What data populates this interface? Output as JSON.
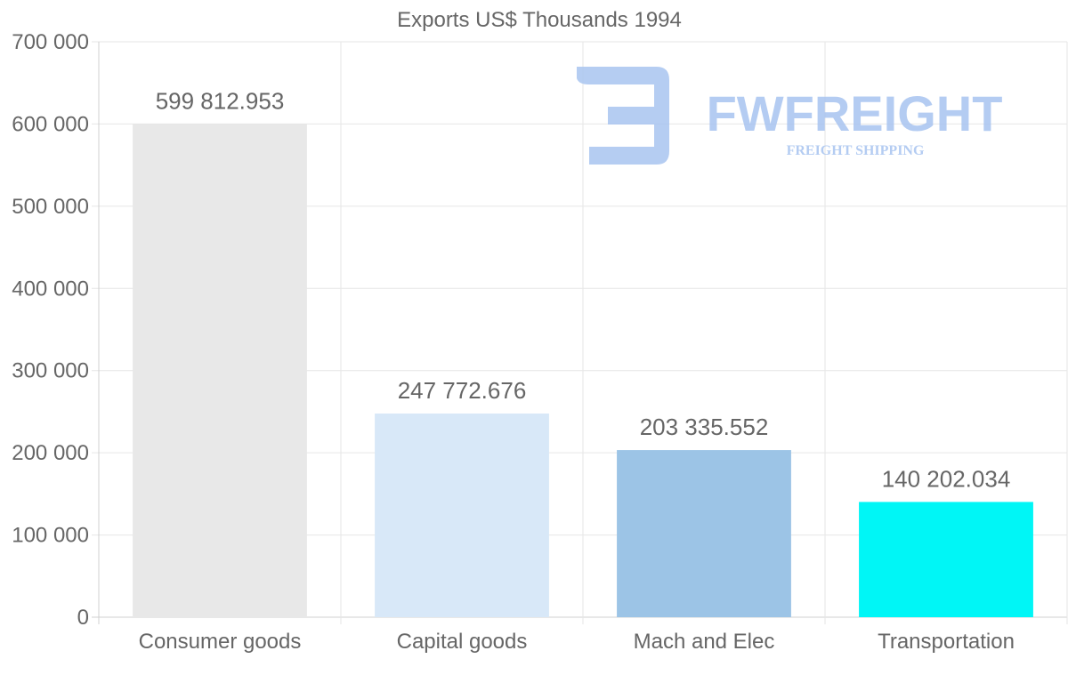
{
  "chart_data": {
    "type": "bar",
    "title": "Exports US$ Thousands 1994",
    "xlabel": "",
    "ylabel": "",
    "categories": [
      "Consumer goods",
      "Capital goods",
      "Mach and Elec",
      "Transportation"
    ],
    "values": [
      599812.953,
      247772.676,
      203335.552,
      140202.034
    ],
    "value_labels": [
      "599 812.953",
      "247 772.676",
      "203 335.552",
      "140 202.034"
    ],
    "bar_colors": [
      "#e8e8e8",
      "#d8e8f8",
      "#9cc4e6",
      "#00f6f6"
    ],
    "ylim": [
      0,
      700000
    ],
    "yticks": [
      0,
      100000,
      200000,
      300000,
      400000,
      500000,
      600000,
      700000
    ],
    "ytick_labels": [
      "0",
      "100 000",
      "200 000",
      "300 000",
      "400 000",
      "500 000",
      "600 000",
      "700 000"
    ],
    "grid": true,
    "legend": "none"
  },
  "watermark": {
    "brand": "FWFREIGHT",
    "tagline": "FREIGHT SHIPPING",
    "color": "#a8c4f0"
  }
}
